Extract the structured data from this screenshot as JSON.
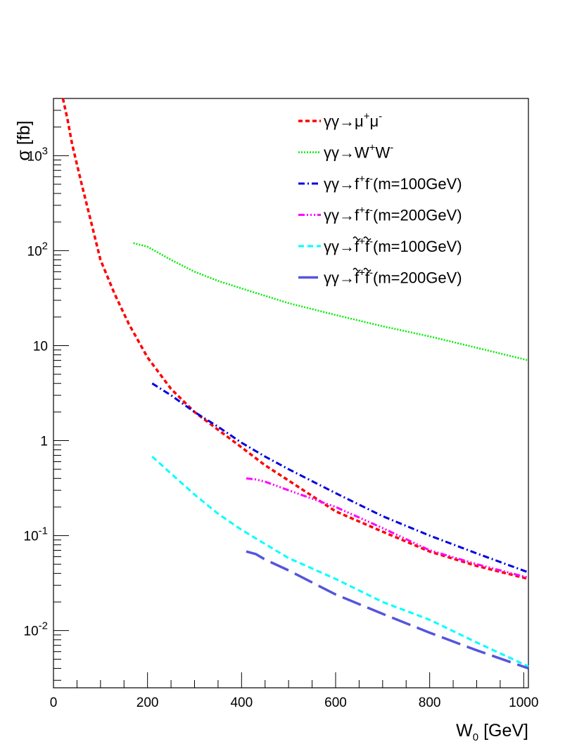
{
  "chart_data": {
    "type": "line",
    "title": "",
    "xlabel": {
      "main": "W",
      "sub": "0",
      "unit": " [GeV]"
    },
    "ylabel": "σ [fb]",
    "xlim": [
      0,
      1010
    ],
    "ylim": [
      0.0025,
      4000
    ],
    "yscale": "log",
    "grid": false,
    "legend_position": "top-right",
    "x_ticks": [
      {
        "value": 0,
        "label": "0"
      },
      {
        "value": 200,
        "label": "200"
      },
      {
        "value": 400,
        "label": "400"
      },
      {
        "value": 600,
        "label": "600"
      },
      {
        "value": 800,
        "label": "800"
      },
      {
        "value": 1000,
        "label": "1000"
      }
    ],
    "y_ticks": [
      {
        "value": 0.01,
        "base": "10",
        "exp": "-2"
      },
      {
        "value": 0.1,
        "base": "10",
        "exp": "-1"
      },
      {
        "value": 1,
        "base": "1",
        "exp": ""
      },
      {
        "value": 10,
        "base": "10",
        "exp": ""
      },
      {
        "value": 100,
        "base": "10",
        "exp": "2"
      },
      {
        "value": 1000,
        "base": "10",
        "exp": "3"
      }
    ],
    "series": [
      {
        "name": "γγ→μ⁺μ⁻",
        "legend": {
          "text": "γγ→μ",
          "sup1": "+",
          "mid": "μ",
          "sup2": "-",
          "tail": ""
        },
        "color": "#ff0000",
        "dash": "6,4",
        "width": 3.5,
        "x": [
          20,
          30,
          40,
          60,
          80,
          100,
          130,
          160,
          200,
          250,
          300,
          350,
          400,
          450,
          500,
          600,
          700,
          800,
          900,
          1010
        ],
        "y": [
          4000,
          2400,
          1300,
          500,
          200,
          80,
          35,
          17,
          7.5,
          3.5,
          2.0,
          1.3,
          0.85,
          0.55,
          0.38,
          0.18,
          0.11,
          0.068,
          0.048,
          0.035
        ]
      },
      {
        "name": "γγ→W⁺W⁻",
        "legend": {
          "text": "γγ→W",
          "sup1": "+",
          "mid": "W",
          "sup2": "-",
          "tail": ""
        },
        "color": "#00ee00",
        "dash": "2,2",
        "width": 2.5,
        "x": [
          170,
          200,
          250,
          300,
          350,
          400,
          500,
          600,
          700,
          800,
          900,
          1010
        ],
        "y": [
          120,
          110,
          80,
          60,
          48,
          40,
          28,
          21,
          16,
          12.5,
          9.5,
          7
        ]
      },
      {
        "name": "γγ→f⁺f⁻(m=100GeV)",
        "legend": {
          "text": "γγ→f",
          "sup1": "+",
          "mid": "f",
          "sup2": "-",
          "tail": "(m=100GeV)"
        },
        "color": "#0000dd",
        "dash": "9,4,2,4",
        "width": 3,
        "x": [
          210,
          250,
          300,
          350,
          400,
          450,
          500,
          600,
          700,
          800,
          900,
          1010
        ],
        "y": [
          4.0,
          3.0,
          2.0,
          1.4,
          0.95,
          0.68,
          0.5,
          0.28,
          0.16,
          0.1,
          0.065,
          0.041
        ]
      },
      {
        "name": "γγ→f⁺f⁻(m=200GeV)",
        "legend": {
          "text": "γγ→f",
          "sup1": "+",
          "mid": "f",
          "sup2": "-",
          "tail": "(m=200GeV)"
        },
        "color": "#ff00ff",
        "dash": "9,3,2,3,2,3,2,3",
        "width": 3,
        "x": [
          410,
          430,
          450,
          500,
          600,
          700,
          800,
          900,
          1010
        ],
        "y": [
          0.4,
          0.39,
          0.37,
          0.3,
          0.2,
          0.12,
          0.07,
          0.05,
          0.036
        ]
      },
      {
        "name": "γγ→f̃⁺f̃⁻(m=100GeV)",
        "legend": {
          "text": "γγ→f",
          "sup1": "+",
          "mid": "f",
          "sup2": "-",
          "tail": "(m=100GeV)",
          "tilde": true
        },
        "color": "#00ffff",
        "dash": "8,5",
        "width": 3,
        "x": [
          210,
          250,
          300,
          350,
          400,
          500,
          600,
          700,
          800,
          900,
          1010
        ],
        "y": [
          0.68,
          0.45,
          0.27,
          0.17,
          0.115,
          0.058,
          0.035,
          0.02,
          0.013,
          0.0075,
          0.0042
        ]
      },
      {
        "name": "γγ→f̃⁺f̃⁻(m=200GeV)",
        "legend": {
          "text": "γγ→f",
          "sup1": "+",
          "mid": "f",
          "sup2": "-",
          "tail": "(m=200GeV)",
          "tilde": true
        },
        "color": "#5555dd",
        "dash": "28,10",
        "width": 3.5,
        "x": [
          410,
          430,
          450,
          500,
          600,
          700,
          800,
          900,
          1010
        ],
        "y": [
          0.068,
          0.064,
          0.056,
          0.043,
          0.024,
          0.015,
          0.0095,
          0.0062,
          0.004
        ]
      }
    ]
  }
}
